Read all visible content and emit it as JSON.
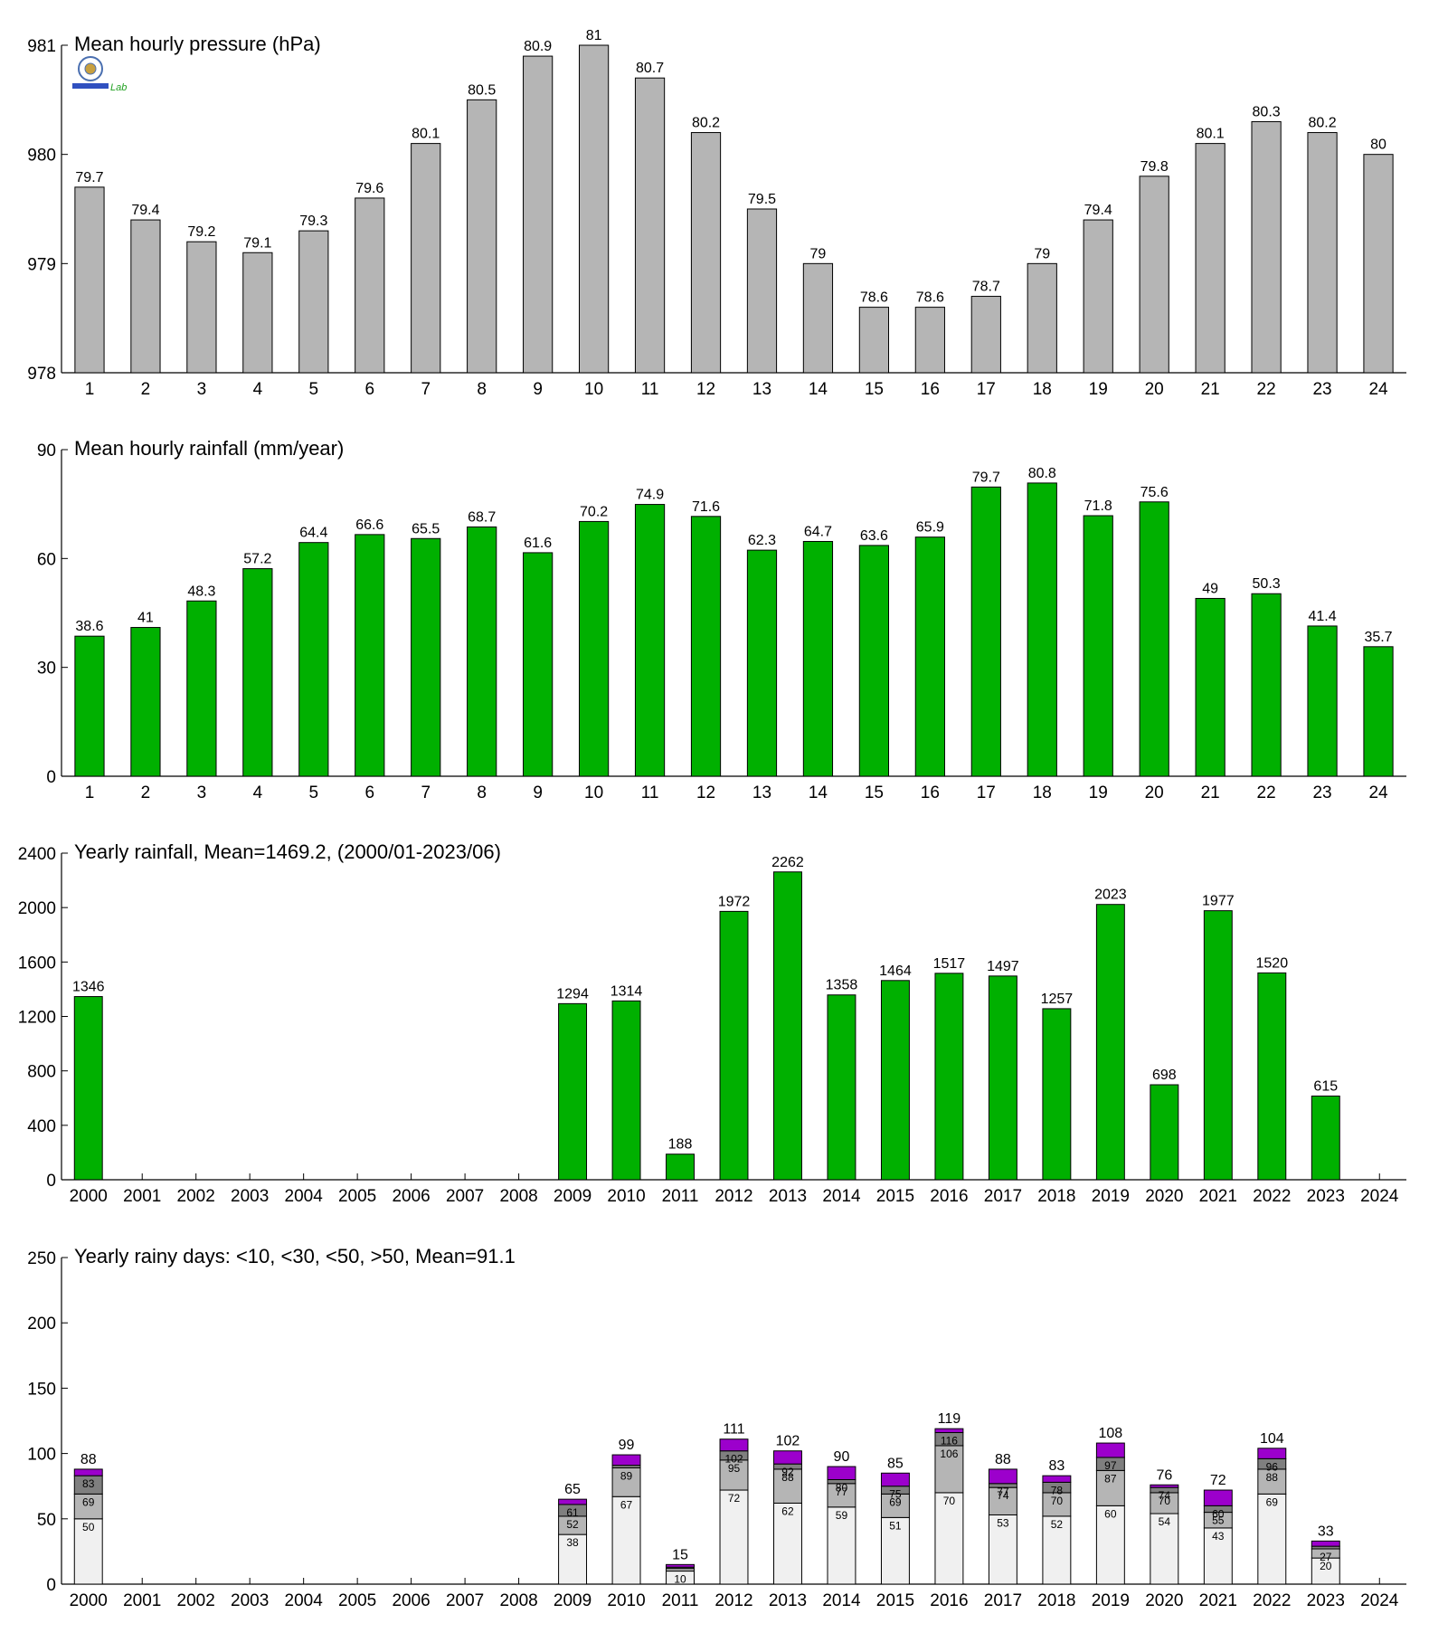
{
  "logo": {
    "icon": "lab-logo-icon",
    "text": "Lab"
  },
  "colors": {
    "gray": "#b5b5b5",
    "green": "#00b000",
    "purple": "#9c00cc",
    "light": "#f0f0f0",
    "dark": "#7f7f7f",
    "verydark": "#555555"
  },
  "chart_data": [
    {
      "type": "bar",
      "title": "Mean hourly pressure (hPa)",
      "categories": [
        "1",
        "2",
        "3",
        "4",
        "5",
        "6",
        "7",
        "8",
        "9",
        "10",
        "11",
        "12",
        "13",
        "14",
        "15",
        "16",
        "17",
        "18",
        "19",
        "20",
        "21",
        "22",
        "23",
        "24"
      ],
      "values": [
        979.7,
        979.4,
        979.2,
        979.1,
        979.3,
        979.6,
        980.1,
        980.5,
        980.9,
        981.0,
        980.7,
        980.2,
        979.5,
        979.0,
        978.6,
        978.6,
        978.7,
        979.0,
        979.4,
        979.8,
        980.1,
        980.3,
        980.2,
        980.0
      ],
      "labels": [
        "79.7",
        "79.4",
        "79.2",
        "79.1",
        "79.3",
        "79.6",
        "80.1",
        "80.5",
        "80.9",
        "81",
        "80.7",
        "80.2",
        "79.5",
        "79",
        "78.6",
        "78.6",
        "78.7",
        "79",
        "79.4",
        "79.8",
        "80.1",
        "80.3",
        "80.2",
        "80"
      ],
      "ylim": [
        978,
        981
      ],
      "yticks": [
        "978",
        "979",
        "980",
        "981"
      ],
      "color": "#b5b5b5"
    },
    {
      "type": "bar",
      "title": "Mean hourly rainfall (mm/year)",
      "categories": [
        "1",
        "2",
        "3",
        "4",
        "5",
        "6",
        "7",
        "8",
        "9",
        "10",
        "11",
        "12",
        "13",
        "14",
        "15",
        "16",
        "17",
        "18",
        "19",
        "20",
        "21",
        "22",
        "23",
        "24"
      ],
      "values": [
        38.6,
        41,
        48.3,
        57.2,
        64.4,
        66.6,
        65.5,
        68.7,
        61.6,
        70.2,
        74.9,
        71.6,
        62.3,
        64.7,
        63.6,
        65.9,
        79.7,
        80.8,
        71.8,
        75.6,
        49,
        50.3,
        41.4,
        35.7
      ],
      "labels": [
        "38.6",
        "41",
        "48.3",
        "57.2",
        "64.4",
        "66.6",
        "65.5",
        "68.7",
        "61.6",
        "70.2",
        "74.9",
        "71.6",
        "62.3",
        "64.7",
        "63.6",
        "65.9",
        "79.7",
        "80.8",
        "71.8",
        "75.6",
        "49",
        "50.3",
        "41.4",
        "35.7"
      ],
      "ylim": [
        0,
        90
      ],
      "yticks": [
        "0",
        "30",
        "60",
        "90"
      ],
      "color": "#00b000"
    },
    {
      "type": "bar",
      "title": "Yearly rainfall, Mean=1469.2, (2000/01-2023/06)",
      "categories": [
        "2000",
        "2001",
        "2002",
        "2003",
        "2004",
        "2005",
        "2006",
        "2007",
        "2008",
        "2009",
        "2010",
        "2011",
        "2012",
        "2013",
        "2014",
        "2015",
        "2016",
        "2017",
        "2018",
        "2019",
        "2020",
        "2021",
        "2022",
        "2023",
        "2024"
      ],
      "values": [
        1346,
        null,
        null,
        null,
        null,
        null,
        null,
        null,
        null,
        1294,
        1314,
        188,
        1972,
        2262,
        1358,
        1464,
        1517,
        1497,
        1257,
        2023,
        698,
        1977,
        1520,
        615,
        null
      ],
      "labels": [
        "1346",
        "",
        "",
        "",
        "",
        "",
        "",
        "",
        "",
        "1294",
        "1314",
        "188",
        "1972",
        "2262",
        "1358",
        "1464",
        "1517",
        "1497",
        "1257",
        "2023",
        "698",
        "1977",
        "1520",
        "615",
        ""
      ],
      "ylim": [
        0,
        2400
      ],
      "yticks": [
        "0",
        "400",
        "800",
        "1200",
        "1600",
        "2000",
        "2400"
      ],
      "color": "#00b000"
    },
    {
      "type": "bar",
      "title": "Yearly rainy days: <10, <30, <50, >50, Mean=91.1",
      "categories": [
        "2000",
        "2001",
        "2002",
        "2003",
        "2004",
        "2005",
        "2006",
        "2007",
        "2008",
        "2009",
        "2010",
        "2011",
        "2012",
        "2013",
        "2014",
        "2015",
        "2016",
        "2017",
        "2018",
        "2019",
        "2020",
        "2021",
        "2022",
        "2023",
        "2024"
      ],
      "series": [
        {
          "values": [
            50,
            null,
            null,
            null,
            null,
            null,
            null,
            null,
            null,
            38,
            67,
            10,
            72,
            62,
            59,
            51,
            70,
            53,
            52,
            60,
            54,
            43,
            69,
            20,
            null
          ]
        },
        {
          "values": [
            69,
            null,
            null,
            null,
            null,
            null,
            null,
            null,
            null,
            52,
            89,
            12,
            95,
            88,
            77,
            69,
            106,
            74,
            70,
            87,
            70,
            55,
            88,
            27,
            null
          ]
        },
        {
          "values": [
            83,
            null,
            null,
            null,
            null,
            null,
            null,
            null,
            null,
            61,
            91,
            13,
            102,
            92,
            80,
            75,
            116,
            77,
            78,
            97,
            74,
            60,
            96,
            29,
            null
          ]
        },
        {
          "values": [
            88,
            null,
            null,
            null,
            null,
            null,
            null,
            null,
            null,
            65,
            99,
            15,
            111,
            102,
            90,
            85,
            119,
            88,
            83,
            108,
            76,
            72,
            104,
            33,
            null
          ]
        }
      ],
      "inner_labels": [
        [
          "50",
          "69",
          "83"
        ],
        [],
        [],
        [],
        [],
        [],
        [],
        [],
        [],
        [
          "38",
          "52",
          "61"
        ],
        [
          "67",
          "89",
          ""
        ],
        [
          "10",
          "",
          ""
        ],
        [
          "72",
          "95",
          "102"
        ],
        [
          "62",
          "88",
          "92"
        ],
        [
          "59",
          "77",
          "80"
        ],
        [
          "51",
          "69",
          "75"
        ],
        [
          "70",
          "106",
          "116"
        ],
        [
          "53",
          "74",
          "77"
        ],
        [
          "52",
          "70",
          "78"
        ],
        [
          "60",
          "87",
          "97"
        ],
        [
          "54",
          "70",
          "74"
        ],
        [
          "43",
          "55",
          "60"
        ],
        [
          "69",
          "88",
          "96"
        ],
        [
          "20",
          "27",
          ""
        ],
        []
      ],
      "totals": [
        "88",
        "",
        "",
        "",
        "",
        "",
        "",
        "",
        "",
        "65",
        "99",
        "15",
        "111",
        "102",
        "90",
        "85",
        "119",
        "88",
        "83",
        "108",
        "76",
        "72",
        "104",
        "33",
        ""
      ],
      "ylim": [
        0,
        250
      ],
      "yticks": [
        "0",
        "50",
        "100",
        "150",
        "200",
        "250"
      ],
      "colors": [
        "#f0f0f0",
        "#b5b5b5",
        "#7f7f7f",
        "#9c00cc"
      ]
    }
  ]
}
